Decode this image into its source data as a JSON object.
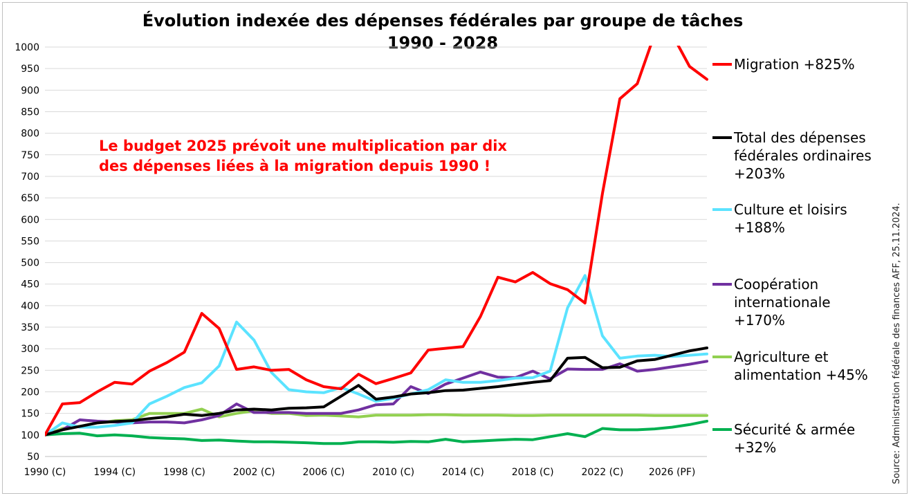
{
  "chart_data": {
    "type": "line",
    "title": "Évolution indexée des dépenses fédérales par groupe de tâches",
    "subtitle": "1990 - 2028",
    "annotation": [
      "Le budget 2025 prévoit une multiplication par dix",
      "des dépenses liées à la migration depuis 1990 !"
    ],
    "source": "Source: Administration fédérale des finances AFF, 25.11.2024.",
    "ylim": [
      50,
      1000
    ],
    "yticks": [
      50,
      100,
      150,
      200,
      250,
      300,
      350,
      400,
      450,
      500,
      550,
      600,
      650,
      700,
      750,
      800,
      850,
      900,
      950,
      1000
    ],
    "xlim": [
      1990,
      2028
    ],
    "xticks": [
      {
        "year": 1990,
        "label": "1990 (C)"
      },
      {
        "year": 1994,
        "label": "1994 (C)"
      },
      {
        "year": 1998,
        "label": "1998 (C)"
      },
      {
        "year": 2002,
        "label": "2002 (C)"
      },
      {
        "year": 2006,
        "label": "2006 (C)"
      },
      {
        "year": 2010,
        "label": "2010 (C)"
      },
      {
        "year": 2014,
        "label": "2014 (C)"
      },
      {
        "year": 2018,
        "label": "2018 (C)"
      },
      {
        "year": 2022,
        "label": "2022 (C)"
      },
      {
        "year": 2026,
        "label": "2026 (PF)"
      }
    ],
    "legend_position": "right",
    "grid": true,
    "x": [
      1990,
      1991,
      1992,
      1993,
      1994,
      1995,
      1996,
      1997,
      1998,
      1999,
      2000,
      2001,
      2002,
      2003,
      2004,
      2005,
      2006,
      2007,
      2008,
      2009,
      2010,
      2011,
      2012,
      2013,
      2014,
      2015,
      2016,
      2017,
      2018,
      2019,
      2020,
      2021,
      2022,
      2023,
      2024,
      2025,
      2026,
      2027,
      2028
    ],
    "series": [
      {
        "name": "Migration",
        "legend_lines": [
          "Migration +825%"
        ],
        "color": "#ff0000",
        "values": [
          100,
          172,
          175,
          200,
          222,
          218,
          248,
          268,
          292,
          382,
          347,
          252,
          258,
          250,
          252,
          228,
          212,
          207,
          241,
          219,
          231,
          244,
          297,
          301,
          305,
          375,
          466,
          455,
          477,
          451,
          437,
          406,
          660,
          880,
          915,
          1030,
          1030,
          955,
          925
        ]
      },
      {
        "name": "Total des dépenses fédérales ordinaires",
        "legend_lines": [
          "Total des dépenses",
          "fédérales ordinaires",
          "+203%"
        ],
        "color": "#000000",
        "values": [
          100,
          112,
          120,
          128,
          131,
          133,
          138,
          142,
          148,
          145,
          150,
          158,
          160,
          158,
          162,
          163,
          165,
          190,
          215,
          183,
          188,
          195,
          198,
          203,
          204,
          208,
          212,
          217,
          222,
          226,
          278,
          280,
          256,
          257,
          272,
          275,
          285,
          295,
          302
        ]
      },
      {
        "name": "Culture et loisirs",
        "legend_lines": [
          "Culture et loisirs",
          "+188%"
        ],
        "color": "#5be3ff",
        "values": [
          100,
          128,
          118,
          118,
          122,
          128,
          172,
          190,
          210,
          221,
          260,
          362,
          320,
          245,
          205,
          200,
          198,
          210,
          195,
          178,
          185,
          195,
          205,
          228,
          222,
          222,
          226,
          232,
          233,
          248,
          395,
          470,
          330,
          278,
          283,
          285,
          282,
          285,
          288
        ]
      },
      {
        "name": "Coopération internationale",
        "legend_lines": [
          "Coopération",
          "internationale",
          "+170%"
        ],
        "color": "#7030a0",
        "values": [
          100,
          112,
          135,
          132,
          130,
          128,
          130,
          130,
          128,
          135,
          145,
          172,
          152,
          152,
          152,
          150,
          150,
          150,
          158,
          170,
          172,
          212,
          196,
          218,
          232,
          246,
          234,
          233,
          248,
          230,
          253,
          252,
          252,
          265,
          248,
          252,
          258,
          264,
          271
        ]
      },
      {
        "name": "Agriculture et alimentation",
        "legend_lines": [
          "Agriculture et",
          "alimentation +45%"
        ],
        "color": "#92d050",
        "values": [
          100,
          115,
          120,
          128,
          133,
          135,
          150,
          150,
          150,
          160,
          142,
          150,
          156,
          150,
          150,
          145,
          146,
          144,
          142,
          146,
          146,
          146,
          147,
          147,
          146,
          146,
          146,
          145,
          145,
          146,
          146,
          146,
          146,
          146,
          146,
          145,
          145,
          145,
          145
        ]
      },
      {
        "name": "Sécurité & armée",
        "legend_lines": [
          "Sécurité & armée",
          "+32%"
        ],
        "color": "#00b050",
        "values": [
          100,
          103,
          104,
          98,
          100,
          98,
          94,
          92,
          91,
          87,
          88,
          86,
          84,
          84,
          83,
          82,
          80,
          80,
          84,
          84,
          83,
          85,
          84,
          90,
          84,
          86,
          88,
          90,
          89,
          96,
          103,
          96,
          115,
          112,
          112,
          114,
          118,
          124,
          132
        ]
      }
    ]
  }
}
